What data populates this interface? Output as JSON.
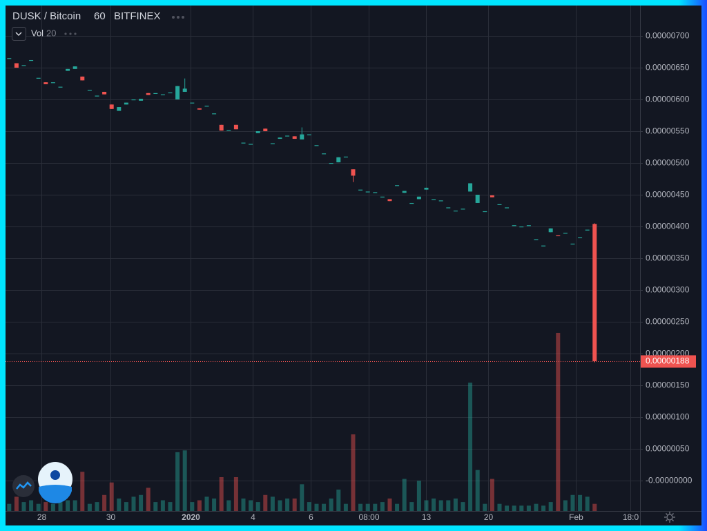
{
  "chart_data": {
    "type": "candlestick",
    "title": "DUSK / Bitcoin",
    "interval": 60,
    "exchange": "BITFINEX",
    "volume_label": "Vol",
    "volume_length": 20,
    "up_color": "#26a69a",
    "down_color": "#ef5350",
    "grid": true,
    "xlim": [
      -0.5,
      86.2
    ],
    "xticks": [
      {
        "value": 4.4,
        "label": "28"
      },
      {
        "value": 13.8,
        "label": "30"
      },
      {
        "value": 24.8,
        "label": "2020"
      },
      {
        "value": 33.3,
        "label": "4"
      },
      {
        "value": 41.2,
        "label": "6"
      },
      {
        "value": 49.1,
        "label": "08:00"
      },
      {
        "value": 57.0,
        "label": "13"
      },
      {
        "value": 65.4,
        "label": "20"
      },
      {
        "value": 77.4,
        "label": "Feb"
      },
      {
        "value": 84.9,
        "label": "18:0"
      }
    ],
    "ylim": [
      -4.783e-07,
      7.4783e-06
    ],
    "yticks": [
      {
        "value": 7e-06,
        "label": "0.00000700"
      },
      {
        "value": 6.5e-06,
        "label": "0.00000650"
      },
      {
        "value": 6e-06,
        "label": "0.00000600"
      },
      {
        "value": 5.5e-06,
        "label": "0.00000550"
      },
      {
        "value": 5e-06,
        "label": "0.00000500"
      },
      {
        "value": 4.5e-06,
        "label": "0.00000450"
      },
      {
        "value": 4e-06,
        "label": "0.00000400"
      },
      {
        "value": 3.5e-06,
        "label": "0.00000350"
      },
      {
        "value": 3e-06,
        "label": "0.00000300"
      },
      {
        "value": 2.5e-06,
        "label": "0.00000250"
      },
      {
        "value": 2e-06,
        "label": "0.00000200"
      },
      {
        "value": 1.5e-06,
        "label": "0.00000150"
      },
      {
        "value": 1e-06,
        "label": "0.00000100"
      },
      {
        "value": 5e-07,
        "label": "0.00000050"
      },
      {
        "value": 0,
        "label": "-0.00000000"
      }
    ],
    "last_price": {
      "value": 1.88e-06,
      "label": "0.00000188"
    },
    "open": [
      6.65e-06,
      6.57e-06,
      6.54e-06,
      6.62e-06,
      6.34e-06,
      6.27e-06,
      6.27e-06,
      6.2e-06,
      6.45e-06,
      6.48e-06,
      6.36e-06,
      6.15e-06,
      6.06e-06,
      6.12e-06,
      5.92e-06,
      5.82e-06,
      5.92e-06,
      6e-06,
      5.98e-06,
      6.1e-06,
      6.1e-06,
      6.08e-06,
      6.11e-06,
      6e-06,
      6.12e-06,
      5.95e-06,
      5.86e-06,
      5.9e-06,
      5.78e-06,
      5.6e-06,
      5.52e-06,
      5.6e-06,
      5.32e-06,
      5.3e-06,
      5.47e-06,
      5.54e-06,
      5.31e-06,
      5.38e-06,
      5.43e-06,
      5.42e-06,
      5.37e-06,
      5.45e-06,
      5.28e-06,
      5.15e-06,
      5e-06,
      5.01e-06,
      5.1e-06,
      4.9e-06,
      4.58e-06,
      4.55e-06,
      4.54e-06,
      4.47e-06,
      4.43e-06,
      4.65e-06,
      4.53e-06,
      4.37e-06,
      4.43e-06,
      4.58e-06,
      4.43e-06,
      4.41e-06,
      4.3e-06,
      4.25e-06,
      4.28e-06,
      4.55e-06,
      4.37e-06,
      4.24e-06,
      4.49e-06,
      4.35e-06,
      4.3e-06,
      4.02e-06,
      4e-06,
      4.02e-06,
      3.8e-06,
      3.7e-06,
      3.91e-06,
      3.86e-06,
      3.9e-06,
      3.73e-06,
      3.83e-06,
      3.95e-06,
      4.04e-06
    ],
    "high": [
      6.65e-06,
      6.57e-06,
      6.54e-06,
      6.62e-06,
      6.34e-06,
      6.27e-06,
      6.27e-06,
      6.2e-06,
      6.48e-06,
      6.52e-06,
      6.36e-06,
      6.15e-06,
      6.06e-06,
      6.12e-06,
      5.92e-06,
      5.88e-06,
      5.95e-06,
      6e-06,
      6.01e-06,
      6.1e-06,
      6.1e-06,
      6.08e-06,
      6.11e-06,
      6.21e-06,
      6.33e-06,
      5.95e-06,
      5.86e-06,
      5.9e-06,
      5.78e-06,
      5.6e-06,
      5.52e-06,
      5.6e-06,
      5.32e-06,
      5.3e-06,
      5.5e-06,
      5.54e-06,
      5.31e-06,
      5.4e-06,
      5.43e-06,
      5.42e-06,
      5.56e-06,
      5.45e-06,
      5.28e-06,
      5.15e-06,
      5e-06,
      5.09e-06,
      5.1e-06,
      4.9e-06,
      4.58e-06,
      4.55e-06,
      4.54e-06,
      4.47e-06,
      4.43e-06,
      4.65e-06,
      4.56e-06,
      4.37e-06,
      4.47e-06,
      4.61e-06,
      4.43e-06,
      4.41e-06,
      4.3e-06,
      4.25e-06,
      4.28e-06,
      4.68e-06,
      4.5e-06,
      4.24e-06,
      4.49e-06,
      4.35e-06,
      4.3e-06,
      4.02e-06,
      4e-06,
      4.02e-06,
      3.8e-06,
      3.7e-06,
      3.97e-06,
      3.86e-06,
      3.9e-06,
      3.73e-06,
      3.83e-06,
      3.95e-06,
      4.05e-06
    ],
    "low": [
      6.65e-06,
      6.5e-06,
      6.54e-06,
      6.62e-06,
      6.34e-06,
      6.24e-06,
      6.27e-06,
      6.2e-06,
      6.45e-06,
      6.48e-06,
      6.3e-06,
      6.15e-06,
      6.06e-06,
      6.08e-06,
      5.85e-06,
      5.82e-06,
      5.92e-06,
      6e-06,
      5.98e-06,
      6.07e-06,
      6.1e-06,
      6.08e-06,
      6.11e-06,
      6e-06,
      6.12e-06,
      5.95e-06,
      5.84e-06,
      5.9e-06,
      5.78e-06,
      5.51e-06,
      5.52e-06,
      5.53e-06,
      5.32e-06,
      5.3e-06,
      5.47e-06,
      5.5e-06,
      5.31e-06,
      5.38e-06,
      5.43e-06,
      5.38e-06,
      5.37e-06,
      5.45e-06,
      5.28e-06,
      5.15e-06,
      5e-06,
      5.01e-06,
      5.1e-06,
      4.7e-06,
      4.58e-06,
      4.55e-06,
      4.54e-06,
      4.47e-06,
      4.4e-06,
      4.65e-06,
      4.53e-06,
      4.37e-06,
      4.43e-06,
      4.58e-06,
      4.43e-06,
      4.41e-06,
      4.3e-06,
      4.25e-06,
      4.28e-06,
      4.55e-06,
      4.37e-06,
      4.24e-06,
      4.46e-06,
      4.35e-06,
      4.3e-06,
      4.02e-06,
      4e-06,
      4.02e-06,
      3.8e-06,
      3.7e-06,
      3.91e-06,
      3.85e-06,
      3.9e-06,
      3.73e-06,
      3.83e-06,
      3.95e-06,
      1.86e-06
    ],
    "close": [
      6.65e-06,
      6.5e-06,
      6.54e-06,
      6.62e-06,
      6.34e-06,
      6.24e-06,
      6.27e-06,
      6.2e-06,
      6.48e-06,
      6.52e-06,
      6.3e-06,
      6.15e-06,
      6.06e-06,
      6.08e-06,
      5.85e-06,
      5.88e-06,
      5.95e-06,
      6e-06,
      6.01e-06,
      6.07e-06,
      6.1e-06,
      6.08e-06,
      6.11e-06,
      6.21e-06,
      6.17e-06,
      5.95e-06,
      5.84e-06,
      5.9e-06,
      5.78e-06,
      5.51e-06,
      5.52e-06,
      5.53e-06,
      5.32e-06,
      5.3e-06,
      5.5e-06,
      5.5e-06,
      5.31e-06,
      5.4e-06,
      5.43e-06,
      5.38e-06,
      5.45e-06,
      5.45e-06,
      5.28e-06,
      5.15e-06,
      5e-06,
      5.09e-06,
      5.1e-06,
      4.8e-06,
      4.58e-06,
      4.55e-06,
      4.54e-06,
      4.47e-06,
      4.4e-06,
      4.65e-06,
      4.56e-06,
      4.37e-06,
      4.47e-06,
      4.61e-06,
      4.43e-06,
      4.41e-06,
      4.3e-06,
      4.25e-06,
      4.28e-06,
      4.68e-06,
      4.5e-06,
      4.24e-06,
      4.46e-06,
      4.35e-06,
      4.3e-06,
      4.02e-06,
      4e-06,
      4.02e-06,
      3.8e-06,
      3.7e-06,
      3.97e-06,
      3.85e-06,
      3.9e-06,
      3.73e-06,
      3.83e-06,
      3.95e-06,
      1.88e-06
    ],
    "volume": [
      4,
      8,
      5,
      6,
      4,
      5,
      4,
      5,
      6,
      6,
      22,
      4,
      5,
      9,
      16,
      7,
      5,
      8,
      9,
      13,
      5,
      6,
      5,
      33,
      34,
      5,
      6,
      8,
      7,
      19,
      6,
      19,
      7,
      6,
      5,
      9,
      8,
      6,
      7,
      7,
      15,
      5,
      4,
      4,
      7,
      12,
      4,
      43,
      4,
      4,
      4,
      5,
      7,
      4,
      18,
      5,
      17,
      6,
      7,
      6,
      6,
      7,
      5,
      72,
      23,
      4,
      18,
      4,
      3,
      3,
      3,
      3,
      4,
      3,
      5,
      100,
      6,
      9,
      9,
      8,
      4
    ]
  }
}
